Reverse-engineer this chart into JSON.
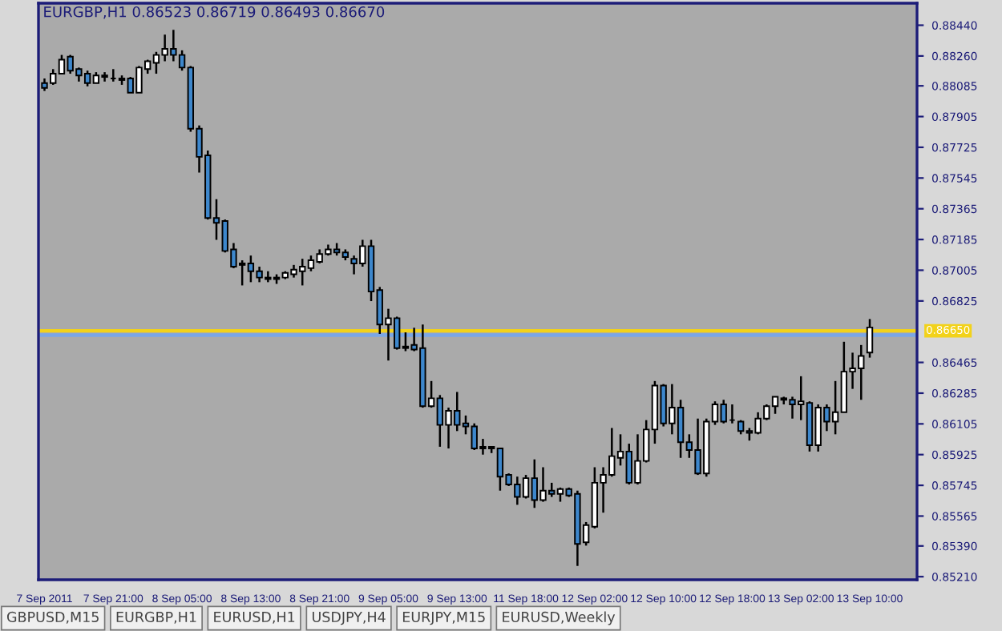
{
  "chart_data": {
    "type": "candlestick",
    "title": "EURGBP,H1 0.86523 0.86719 0.86493 0.86670",
    "categories": [
      "7 Sep 2011",
      null,
      null,
      null,
      null,
      null,
      null,
      null,
      "7 Sep 21:00",
      null,
      null,
      null,
      null,
      null,
      null,
      null,
      "8 Sep 05:00",
      null,
      null,
      null,
      null,
      null,
      null,
      null,
      "8 Sep 13:00",
      null,
      null,
      null,
      null,
      null,
      null,
      null,
      "8 Sep 21:00",
      null,
      null,
      null,
      null,
      null,
      null,
      null,
      "9 Sep 05:00",
      null,
      null,
      null,
      null,
      null,
      null,
      null,
      "9 Sep 13:00",
      null,
      null,
      null,
      null,
      null,
      null,
      null,
      "11 Sep 18:00",
      null,
      null,
      null,
      null,
      null,
      null,
      null,
      "12 Sep 02:00",
      null,
      null,
      null,
      null,
      null,
      null,
      null,
      "12 Sep 10:00",
      null,
      null,
      null,
      null,
      null,
      null,
      null,
      "12 Sep 18:00",
      null,
      null,
      null,
      null,
      null,
      null,
      null,
      "13 Sep 02:00",
      null,
      null,
      null,
      null,
      null,
      null,
      null,
      "13 Sep 10:00"
    ],
    "ohlc": [
      [
        0.88101,
        0.88128,
        0.88055,
        0.88073
      ],
      [
        0.88101,
        0.88183,
        0.88091,
        0.88156
      ],
      [
        0.88156,
        0.88266,
        0.88156,
        0.88238
      ],
      [
        0.88256,
        0.88266,
        0.88156,
        0.88174
      ],
      [
        0.88183,
        0.88192,
        0.8811,
        0.88146
      ],
      [
        0.88156,
        0.88174,
        0.88082,
        0.88101
      ],
      [
        0.88101,
        0.88165,
        0.88101,
        0.88146
      ],
      [
        0.88146,
        0.88165,
        0.8811,
        0.88137
      ],
      [
        0.88128,
        0.88183,
        0.8811,
        0.88128
      ],
      [
        0.88128,
        0.88146,
        0.88091,
        0.88119
      ],
      [
        0.88128,
        0.88137,
        0.88045,
        0.88045
      ],
      [
        0.88045,
        0.88201,
        0.88045,
        0.88192
      ],
      [
        0.88183,
        0.88238,
        0.88156,
        0.88229
      ],
      [
        0.8822,
        0.88284,
        0.88156,
        0.88266
      ],
      [
        0.88266,
        0.88385,
        0.88229,
        0.88302
      ],
      [
        0.88302,
        0.88413,
        0.88229,
        0.88266
      ],
      [
        0.88266,
        0.88293,
        0.88174,
        0.88192
      ],
      [
        0.88192,
        0.88201,
        0.87816,
        0.87834
      ],
      [
        0.87834,
        0.87853,
        0.87577,
        0.87669
      ],
      [
        0.87678,
        0.87706,
        0.87302,
        0.87311
      ],
      [
        0.87311,
        0.87421,
        0.87183,
        0.87283
      ],
      [
        0.87293,
        0.87302,
        0.87109,
        0.87118
      ],
      [
        0.87127,
        0.87164,
        0.87017,
        0.87026
      ],
      [
        0.87045,
        0.87063,
        0.86916,
        0.87036
      ],
      [
        0.87045,
        0.87091,
        0.86935,
        0.86999
      ],
      [
        0.86999,
        0.87026,
        0.86935,
        0.86962
      ],
      [
        0.86962,
        0.86999,
        0.86935,
        0.86953
      ],
      [
        0.86962,
        0.86981,
        0.86925,
        0.86953
      ],
      [
        0.86962,
        0.86999,
        0.86953,
        0.8699
      ],
      [
        0.86981,
        0.87036,
        0.86962,
        0.87008
      ],
      [
        0.86999,
        0.87072,
        0.86916,
        0.87026
      ],
      [
        0.87017,
        0.87091,
        0.86999,
        0.87063
      ],
      [
        0.87054,
        0.87127,
        0.87045,
        0.871
      ],
      [
        0.871,
        0.87155,
        0.87091,
        0.87127
      ],
      [
        0.87127,
        0.87164,
        0.87091,
        0.87109
      ],
      [
        0.87109,
        0.87127,
        0.87063,
        0.87082
      ],
      [
        0.87072,
        0.87091,
        0.86981,
        0.87045
      ],
      [
        0.87045,
        0.87183,
        0.87026,
        0.87146
      ],
      [
        0.87146,
        0.87183,
        0.86824,
        0.8688
      ],
      [
        0.86889,
        0.86907,
        0.86632,
        0.86687
      ],
      [
        0.86687,
        0.86779,
        0.86476,
        0.86724
      ],
      [
        0.86724,
        0.86733,
        0.8654,
        0.86549
      ],
      [
        0.86558,
        0.86641,
        0.86531,
        0.86549
      ],
      [
        0.86567,
        0.86668,
        0.86531,
        0.8654
      ],
      [
        0.86549,
        0.86687,
        0.862,
        0.86209
      ],
      [
        0.86209,
        0.86356,
        0.862,
        0.86255
      ],
      [
        0.86255,
        0.86274,
        0.85971,
        0.86099
      ],
      [
        0.86099,
        0.862,
        0.85961,
        0.86182
      ],
      [
        0.86182,
        0.86292,
        0.86063,
        0.86099
      ],
      [
        0.86108,
        0.86154,
        0.86044,
        0.8609
      ],
      [
        0.8609,
        0.86108,
        0.85952,
        0.85961
      ],
      [
        0.85971,
        0.86017,
        0.85925,
        0.85961
      ],
      [
        0.85961,
        0.85971,
        0.85934,
        0.85971
      ],
      [
        0.85961,
        0.85961,
        0.85714,
        0.85796
      ],
      [
        0.85806,
        0.85815,
        0.85741,
        0.8575
      ],
      [
        0.8575,
        0.85796,
        0.85631,
        0.85677
      ],
      [
        0.85677,
        0.85806,
        0.85668,
        0.85787
      ],
      [
        0.85787,
        0.85897,
        0.85613,
        0.85659
      ],
      [
        0.85659,
        0.85851,
        0.85649,
        0.85714
      ],
      [
        0.85714,
        0.8576,
        0.85677,
        0.85695
      ],
      [
        0.85695,
        0.85732,
        0.85649,
        0.85723
      ],
      [
        0.85723,
        0.85732,
        0.85677,
        0.85686
      ],
      [
        0.85695,
        0.85714,
        0.85273,
        0.85402
      ],
      [
        0.85411,
        0.8553,
        0.85392,
        0.85512
      ],
      [
        0.85503,
        0.85851,
        0.85493,
        0.8576
      ],
      [
        0.8576,
        0.85851,
        0.85585,
        0.85806
      ],
      [
        0.85806,
        0.86081,
        0.85796,
        0.85916
      ],
      [
        0.85906,
        0.86044,
        0.85861,
        0.85943
      ],
      [
        0.85943,
        0.85989,
        0.8575,
        0.8576
      ],
      [
        0.8576,
        0.86044,
        0.8575,
        0.85888
      ],
      [
        0.85888,
        0.86127,
        0.85879,
        0.86072
      ],
      [
        0.86072,
        0.86356,
        0.85989,
        0.86329
      ],
      [
        0.86329,
        0.86338,
        0.8609,
        0.86108
      ],
      [
        0.86108,
        0.86338,
        0.86044,
        0.862
      ],
      [
        0.862,
        0.86246,
        0.85906,
        0.85998
      ],
      [
        0.85998,
        0.86044,
        0.85906,
        0.85952
      ],
      [
        0.85952,
        0.86136,
        0.85806,
        0.85815
      ],
      [
        0.85815,
        0.86136,
        0.85796,
        0.86118
      ],
      [
        0.86118,
        0.86237,
        0.86099,
        0.86219
      ],
      [
        0.86219,
        0.86246,
        0.86108,
        0.86118
      ],
      [
        0.86127,
        0.86219,
        0.86108,
        0.86127
      ],
      [
        0.86118,
        0.86127,
        0.86044,
        0.86063
      ],
      [
        0.86063,
        0.86081,
        0.86007,
        0.86053
      ],
      [
        0.86053,
        0.86173,
        0.86044,
        0.86136
      ],
      [
        0.86136,
        0.86219,
        0.86127,
        0.86209
      ],
      [
        0.86209,
        0.86264,
        0.86164,
        0.86264
      ],
      [
        0.86255,
        0.86264,
        0.86219,
        0.86246
      ],
      [
        0.86246,
        0.86264,
        0.86136,
        0.86219
      ],
      [
        0.86219,
        0.86384,
        0.86127,
        0.86237
      ],
      [
        0.86228,
        0.86237,
        0.85943,
        0.8598
      ],
      [
        0.8598,
        0.86219,
        0.85943,
        0.862
      ],
      [
        0.862,
        0.86219,
        0.86063,
        0.86118
      ],
      [
        0.86118,
        0.86356,
        0.86044,
        0.86173
      ],
      [
        0.86173,
        0.86586,
        0.86173,
        0.86411
      ],
      [
        0.86411,
        0.86522,
        0.8631,
        0.8643
      ],
      [
        0.8643,
        0.86567,
        0.86246,
        0.86503
      ],
      [
        0.86523,
        0.86719,
        0.86493,
        0.8667
      ]
    ],
    "colors": [
      "#3d87cc",
      "#ffffff",
      "#ffffff",
      "#3d87cc",
      "#3d87cc",
      "#3d87cc",
      "#ffffff",
      "#3d87cc",
      "#000000",
      "#3d87cc",
      "#3d87cc",
      "#ffffff",
      "#ffffff",
      "#ffffff",
      "#ffffff",
      "#3d87cc",
      "#3d87cc",
      "#3d87cc",
      "#3d87cc",
      "#3d87cc",
      "#3d87cc",
      "#3d87cc",
      "#3d87cc",
      "#3d87cc",
      "#3d87cc",
      "#3d87cc",
      "#3d87cc",
      "#3d87cc",
      "#ffffff",
      "#ffffff",
      "#ffffff",
      "#ffffff",
      "#ffffff",
      "#ffffff",
      "#3d87cc",
      "#3d87cc",
      "#3d87cc",
      "#ffffff",
      "#3d87cc",
      "#3d87cc",
      "#ffffff",
      "#3d87cc",
      "#3d87cc",
      "#3d87cc",
      "#3d87cc",
      "#ffffff",
      "#3d87cc",
      "#ffffff",
      "#3d87cc",
      "#3d87cc",
      "#3d87cc",
      "#3d87cc",
      "#ffffff",
      "#3d87cc",
      "#3d87cc",
      "#3d87cc",
      "#ffffff",
      "#3d87cc",
      "#ffffff",
      "#3d87cc",
      "#ffffff",
      "#3d87cc",
      "#3d87cc",
      "#ffffff",
      "#ffffff",
      "#ffffff",
      "#ffffff",
      "#ffffff",
      "#3d87cc",
      "#ffffff",
      "#ffffff",
      "#ffffff",
      "#3d87cc",
      "#ffffff",
      "#3d87cc",
      "#3d87cc",
      "#3d87cc",
      "#ffffff",
      "#ffffff",
      "#3d87cc",
      "#000000",
      "#3d87cc",
      "#3d87cc",
      "#ffffff",
      "#ffffff",
      "#ffffff",
      "#3d87cc",
      "#3d87cc",
      "#ffffff",
      "#3d87cc",
      "#ffffff",
      "#3d87cc",
      "#ffffff",
      "#ffffff",
      "#ffffff",
      "#ffffff",
      "#ffffff"
    ],
    "ylim": [
      0.85192,
      0.88569
    ],
    "yticks": [
      {
        "value": 0.8844,
        "label": "0.88440"
      },
      {
        "value": 0.8826,
        "label": "0.88260"
      },
      {
        "value": 0.88085,
        "label": "0.88085"
      },
      {
        "value": 0.87905,
        "label": "0.87905"
      },
      {
        "value": 0.87725,
        "label": "0.87725"
      },
      {
        "value": 0.87545,
        "label": "0.87545"
      },
      {
        "value": 0.87365,
        "label": "0.87365"
      },
      {
        "value": 0.87185,
        "label": "0.87185"
      },
      {
        "value": 0.87005,
        "label": "0.87005"
      },
      {
        "value": 0.86825,
        "label": "0.86825"
      },
      {
        "value": 0.86465,
        "label": "0.86465"
      },
      {
        "value": 0.86285,
        "label": "0.86285"
      },
      {
        "value": 0.86105,
        "label": "0.86105"
      },
      {
        "value": 0.85925,
        "label": "0.85925"
      },
      {
        "value": 0.85745,
        "label": "0.85745"
      },
      {
        "value": 0.85565,
        "label": "0.85565"
      },
      {
        "value": 0.8539,
        "label": "0.85390"
      },
      {
        "value": 0.8521,
        "label": "0.85210"
      }
    ],
    "ref_lines": [
      {
        "axis": "y",
        "value": 0.8665,
        "label": "0.86650",
        "color": "#f2d21a"
      },
      {
        "axis": "y",
        "value": 0.86625,
        "label": null,
        "color": "#7aa6e6"
      }
    ],
    "annotations": [
      "GBPUSD,M15",
      "EURGBP,H1",
      "EURUSD,H1",
      "USDJPY,H4",
      "EURJPY,M15",
      "EURUSD,Weekly"
    ],
    "grid": false
  }
}
